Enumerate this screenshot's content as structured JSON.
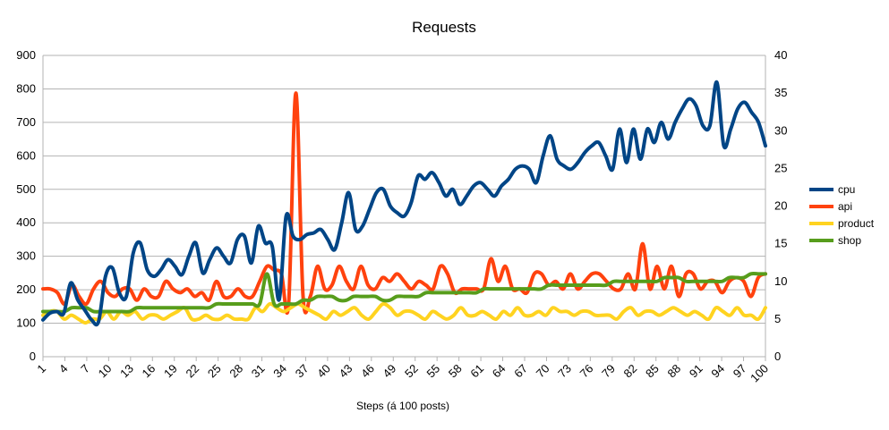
{
  "chart_data": {
    "type": "line",
    "title": "Requests",
    "xlabel": "Steps (á 100 posts)",
    "ylabel": "",
    "ylim": [
      0,
      900
    ],
    "y_ticks": [
      0,
      100,
      200,
      300,
      400,
      500,
      600,
      700,
      800,
      900
    ],
    "y2lim": [
      0,
      40
    ],
    "y2_ticks": [
      0,
      5,
      10,
      15,
      20,
      25,
      30,
      35,
      40
    ],
    "x_range": [
      1,
      100
    ],
    "x_tick_labels": [
      "1",
      "4",
      "7",
      "10",
      "13",
      "16",
      "19",
      "22",
      "25",
      "28",
      "31",
      "34",
      "37",
      "40",
      "43",
      "46",
      "49",
      "52",
      "55",
      "58",
      "61",
      "64",
      "67",
      "70",
      "73",
      "76",
      "79",
      "82",
      "85",
      "88",
      "91",
      "94",
      "97",
      "100"
    ],
    "grid": "horizontal",
    "legend_position": "right",
    "series": [
      {
        "name": "cpu",
        "axis": "left",
        "color": "#004586",
        "values": [
          110,
          130,
          135,
          130,
          220,
          170,
          140,
          110,
          105,
          240,
          265,
          190,
          180,
          310,
          340,
          260,
          240,
          260,
          290,
          270,
          245,
          300,
          340,
          250,
          290,
          325,
          300,
          280,
          350,
          360,
          280,
          390,
          340,
          330,
          170,
          420,
          360,
          350,
          365,
          370,
          380,
          350,
          320,
          400,
          490,
          380,
          390,
          440,
          490,
          500,
          450,
          430,
          420,
          460,
          540,
          530,
          550,
          520,
          480,
          500,
          455,
          480,
          510,
          520,
          500,
          480,
          510,
          530,
          560,
          570,
          560,
          520,
          600,
          660,
          590,
          570,
          560,
          580,
          610,
          630,
          640,
          600,
          560,
          680,
          580,
          680,
          590,
          680,
          640,
          700,
          650,
          700,
          740,
          770,
          750,
          690,
          690,
          820,
          630,
          680,
          740,
          760,
          730,
          700,
          630
        ]
      },
      {
        "name": "api",
        "axis": "right",
        "color": "#ff420e",
        "values": [
          9,
          9,
          8.5,
          7,
          9.5,
          8,
          7,
          9,
          10,
          8.5,
          8,
          9,
          9,
          7.5,
          9,
          8,
          8,
          10,
          9,
          8.5,
          9,
          8,
          8.5,
          7.5,
          10,
          8,
          8,
          9,
          8,
          8,
          10,
          12,
          11.5,
          11,
          7,
          35,
          8,
          8,
          12,
          9,
          9.5,
          12,
          10,
          9,
          12,
          9.5,
          9,
          10.5,
          10,
          11,
          10,
          9,
          10,
          9.5,
          9,
          12,
          11,
          8.5,
          9,
          9,
          9,
          9,
          13,
          10,
          12,
          9,
          9,
          8.5,
          11,
          11,
          9.5,
          10,
          9,
          11,
          9,
          10,
          11,
          11,
          10,
          9,
          9,
          11,
          9,
          15,
          9,
          12,
          9,
          12,
          8,
          11,
          11,
          9,
          10,
          10,
          8.5,
          10,
          10.5,
          10,
          8,
          10.5,
          11
        ]
      },
      {
        "name": "product",
        "axis": "right",
        "color": "#ffd320",
        "values": [
          5.5,
          6,
          6,
          5,
          5.5,
          5,
          4.5,
          5,
          5,
          6,
          5,
          6,
          5.5,
          6,
          5,
          5.5,
          5.5,
          5,
          5.5,
          6,
          6.5,
          5,
          5,
          5.5,
          5,
          5,
          5.5,
          5,
          5,
          5,
          6.5,
          6,
          7,
          6.5,
          6,
          6.5,
          7,
          6.5,
          6,
          5.5,
          5,
          6,
          5.5,
          6,
          6.5,
          5.5,
          5,
          6,
          7,
          6.5,
          5.5,
          6,
          6,
          5.5,
          5,
          6,
          5.5,
          5,
          5.5,
          6.5,
          5.5,
          5.5,
          6,
          5.5,
          5,
          6,
          5.5,
          6.5,
          5.5,
          5.5,
          6,
          5.5,
          6.5,
          6,
          6,
          5.5,
          6,
          6,
          5.5,
          5.5,
          5.5,
          5,
          6,
          6.5,
          5.5,
          6,
          6,
          5.5,
          6,
          6.5,
          6,
          5.5,
          6,
          5.5,
          5,
          6.5,
          6,
          5.5,
          6.5,
          5.5,
          5.5,
          5,
          6.5
        ]
      },
      {
        "name": "shop",
        "axis": "right",
        "color": "#579d1c",
        "values": [
          6,
          6,
          6,
          6,
          6.5,
          6.5,
          6.5,
          6,
          6,
          6,
          6,
          6,
          6,
          6.5,
          6.5,
          6.5,
          6.5,
          6.5,
          6.5,
          6.5,
          6.5,
          6.5,
          6.5,
          6.5,
          7,
          7,
          7,
          7,
          7,
          7,
          7,
          11,
          7,
          7,
          7,
          7,
          7.5,
          7.5,
          8,
          8,
          8,
          7.5,
          7.5,
          8,
          8,
          8,
          8,
          7.5,
          7.5,
          8,
          8,
          8,
          8,
          8.5,
          8.5,
          8.5,
          8.5,
          8.5,
          8.5,
          8.5,
          8.5,
          9,
          9,
          9,
          9,
          9,
          9,
          9,
          9,
          9,
          9.5,
          9.5,
          9.5,
          9.5,
          9.5,
          9.5,
          9.5,
          9.5,
          9.5,
          10,
          10,
          10,
          10,
          10,
          10,
          10,
          10.5,
          10.5,
          10.5,
          10,
          10,
          10,
          10,
          10,
          10,
          10.5,
          10.5,
          10.5,
          11,
          11,
          11
        ]
      }
    ]
  }
}
